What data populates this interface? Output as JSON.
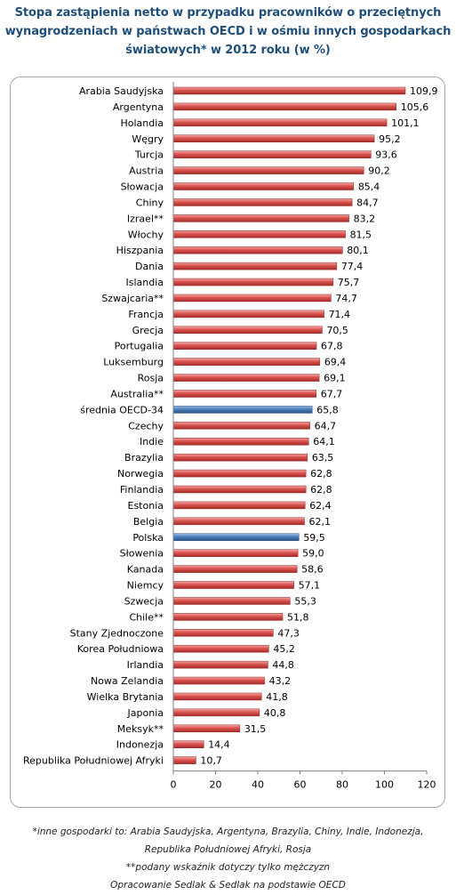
{
  "title_lines": [
    "Stopa zastąpienia netto w przypadku pracowników o przeciętnych",
    "wynagrodzeniach w państwach OECD i w ośmiu innych gospodarkach",
    "światowych* w 2012 roku (w %)"
  ],
  "notes": [
    "*inne gospodarki to: Arabia Saudyjska, Argentyna, Brazylia, Chiny, Indie, Indonezja,",
    "Republika Południowej Afryki, Rosja",
    "**podany wskaźnik dotyczy tylko mężczyzn",
    "Opracowanie Sedlak & Sedlak na podstawie OECD"
  ],
  "colors": {
    "default_bar": "#d9534f",
    "highlight_bar": "#4a7ebb",
    "title": "#1f4e79",
    "grid": "#d9d9d9"
  },
  "chart_data": {
    "type": "bar",
    "orientation": "horizontal",
    "categories": [
      "Arabia Saudyjska",
      "Argentyna",
      "Holandia",
      "Węgry",
      "Turcja",
      "Austria",
      "Słowacja",
      "Chiny",
      "Izrael**",
      "Włochy",
      "Hiszpania",
      "Dania",
      "Islandia",
      "Szwajcaria**",
      "Francja",
      "Grecja",
      "Portugalia",
      "Luksemburg",
      "Rosja",
      "Australia**",
      "średnia OECD-34",
      "Czechy",
      "Indie",
      "Brazylia",
      "Norwegia",
      "Finlandia",
      "Estonia",
      "Belgia",
      "Polska",
      "Słowenia",
      "Kanada",
      "Niemcy",
      "Szwecja",
      "Chile**",
      "Stany Zjednoczone",
      "Korea Południowa",
      "Irlandia",
      "Nowa Zelandia",
      "Wielka Brytania",
      "Japonia",
      "Meksyk**",
      "Indonezja",
      "Republika Południowej Afryki"
    ],
    "values": [
      109.9,
      105.6,
      101.1,
      95.2,
      93.6,
      90.2,
      85.4,
      84.7,
      83.2,
      81.5,
      80.1,
      77.4,
      75.7,
      74.7,
      71.4,
      70.5,
      67.8,
      69.4,
      69.1,
      67.7,
      65.8,
      64.7,
      64.1,
      63.5,
      62.8,
      62.8,
      62.4,
      62.1,
      59.5,
      59.0,
      58.6,
      57.1,
      55.3,
      51.8,
      47.3,
      45.2,
      44.8,
      43.2,
      41.8,
      40.8,
      31.5,
      14.4,
      10.7
    ],
    "value_labels": [
      "109,9",
      "105,6",
      "101,1",
      "95,2",
      "93,6",
      "90,2",
      "85,4",
      "84,7",
      "83,2",
      "81,5",
      "80,1",
      "77,4",
      "75,7",
      "74,7",
      "71,4",
      "70,5",
      "67,8",
      "69,4",
      "69,1",
      "67,7",
      "65,8",
      "64,7",
      "64,1",
      "63,5",
      "62,8",
      "62,8",
      "62,4",
      "62,1",
      "59,5",
      "59,0",
      "58,6",
      "57,1",
      "55,3",
      "51,8",
      "47,3",
      "45,2",
      "44,8",
      "43,2",
      "41,8",
      "40,8",
      "31,5",
      "14,4",
      "10,7"
    ],
    "highlighted": [
      "średnia OECD-34",
      "Polska"
    ],
    "xlim": [
      0,
      120
    ],
    "x_ticks": [
      0,
      20,
      40,
      60,
      80,
      100,
      120
    ],
    "grid": false,
    "legend": "none"
  }
}
